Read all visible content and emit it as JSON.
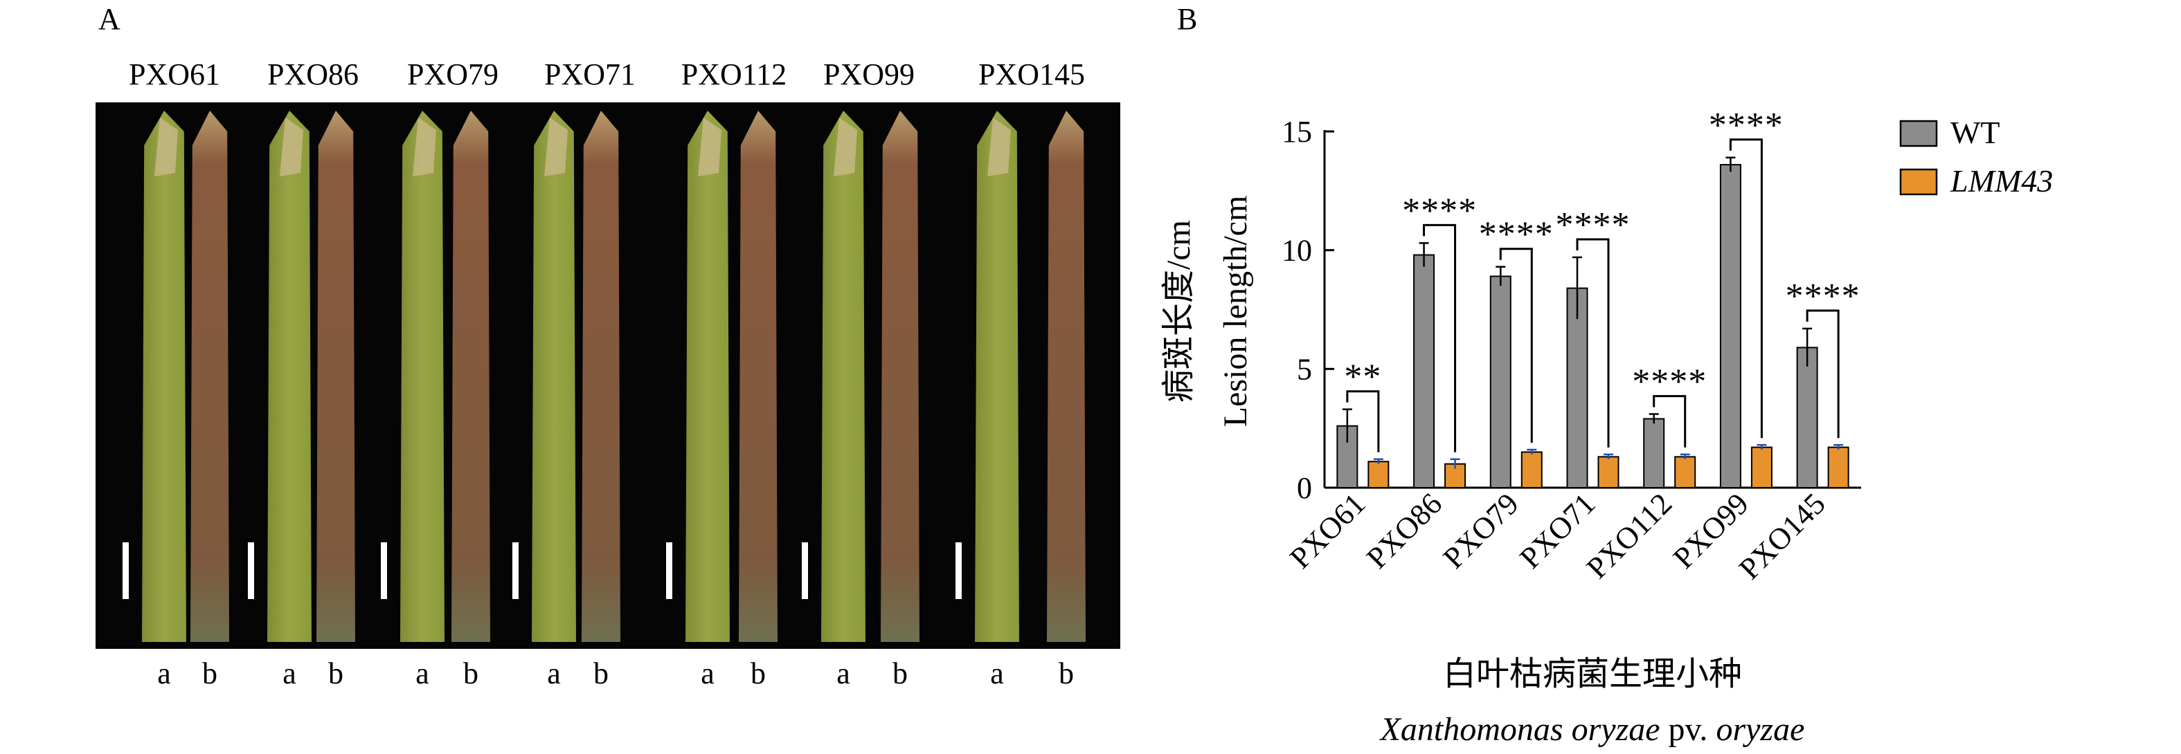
{
  "panelA": {
    "letter": "A",
    "isolates": [
      "PXO61",
      "PXO86",
      "PXO79",
      "PXO71",
      "PXO112",
      "PXO99",
      "PXO145"
    ],
    "leaf_labels": [
      "a",
      "b"
    ],
    "colors": {
      "wt_leaf": "#9aa545",
      "mutant_leaf": "#8a5a3e",
      "background": "#050505",
      "scale_bar": "#ffffff"
    }
  },
  "panelB": {
    "letter": "B"
  },
  "chart_data": {
    "type": "bar",
    "categories": [
      "PXO61",
      "PXO86",
      "PXO79",
      "PXO71",
      "PXO112",
      "PXO99",
      "PXO145"
    ],
    "series": [
      {
        "name": "WT",
        "values": [
          2.6,
          9.8,
          8.9,
          8.4,
          2.9,
          13.6,
          5.9
        ],
        "errors": [
          0.7,
          0.5,
          0.4,
          1.3,
          0.2,
          0.3,
          0.8
        ],
        "color": "#8c8c8c"
      },
      {
        "name": "LMM43",
        "values": [
          1.1,
          1.0,
          1.5,
          1.3,
          1.3,
          1.7,
          1.7
        ],
        "errors": [
          0.1,
          0.2,
          0.1,
          0.1,
          0.1,
          0.1,
          0.1
        ],
        "color": "#e8922e"
      }
    ],
    "significance": [
      "**",
      "****",
      "****",
      "****",
      "****",
      "****",
      "****"
    ],
    "ylabel_cn": "病斑长度/cm",
    "ylabel_en": "Lesion length/cm",
    "xlabel_cn": "白叶枯病菌生理小种",
    "xlabel_en_italic_1": "Xanthomonas oryzae",
    "xlabel_en_plain": " pv. ",
    "xlabel_en_italic_2": "oryzae",
    "ylim": [
      0,
      15
    ],
    "yticks": [
      0,
      5,
      10,
      15
    ],
    "legend_position": "top-right"
  }
}
